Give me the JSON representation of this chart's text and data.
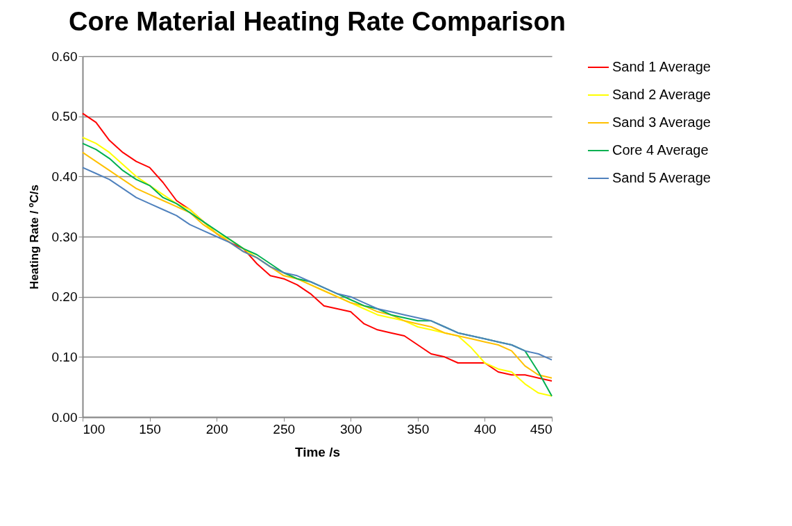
{
  "chart_data": {
    "type": "line",
    "title": "Core Material Heating Rate Comparison",
    "xlabel": "Time /s",
    "ylabel": "Heating Rate / ºC/s",
    "x": [
      100,
      110,
      120,
      130,
      140,
      150,
      160,
      170,
      180,
      190,
      200,
      210,
      220,
      230,
      240,
      250,
      260,
      270,
      280,
      290,
      300,
      310,
      320,
      330,
      340,
      350,
      360,
      370,
      380,
      390,
      400,
      410,
      420,
      430,
      440,
      450
    ],
    "series": [
      {
        "name": "Sand 1 Average",
        "color": "#ff0000",
        "values": [
          0.505,
          0.49,
          0.46,
          0.44,
          0.425,
          0.415,
          0.39,
          0.36,
          0.345,
          0.325,
          0.305,
          0.29,
          0.28,
          0.255,
          0.235,
          0.23,
          0.22,
          0.205,
          0.185,
          0.18,
          0.175,
          0.155,
          0.145,
          0.14,
          0.135,
          0.12,
          0.105,
          0.1,
          0.09,
          0.09,
          0.09,
          0.075,
          0.07,
          0.07,
          0.065,
          0.06
        ]
      },
      {
        "name": "Sand 2 Average",
        "color": "#ffff00",
        "values": [
          0.465,
          0.455,
          0.44,
          0.42,
          0.4,
          0.385,
          0.37,
          0.355,
          0.345,
          0.325,
          0.305,
          0.295,
          0.28,
          0.265,
          0.25,
          0.24,
          0.23,
          0.22,
          0.21,
          0.2,
          0.19,
          0.18,
          0.17,
          0.165,
          0.16,
          0.15,
          0.145,
          0.14,
          0.135,
          0.115,
          0.09,
          0.08,
          0.075,
          0.055,
          0.04,
          0.035
        ]
      },
      {
        "name": "Sand 3 Average",
        "color": "#ffc000",
        "values": [
          0.44,
          0.425,
          0.41,
          0.395,
          0.38,
          0.37,
          0.36,
          0.35,
          0.34,
          0.32,
          0.305,
          0.29,
          0.275,
          0.265,
          0.25,
          0.235,
          0.23,
          0.22,
          0.21,
          0.2,
          0.19,
          0.185,
          0.175,
          0.17,
          0.16,
          0.155,
          0.15,
          0.14,
          0.135,
          0.13,
          0.125,
          0.12,
          0.11,
          0.085,
          0.07,
          0.065
        ]
      },
      {
        "name": "Core 4 Average",
        "color": "#00b050",
        "values": [
          0.455,
          0.445,
          0.43,
          0.41,
          0.395,
          0.385,
          0.365,
          0.355,
          0.34,
          0.325,
          0.31,
          0.295,
          0.28,
          0.27,
          0.255,
          0.24,
          0.23,
          0.225,
          0.215,
          0.205,
          0.195,
          0.185,
          0.18,
          0.17,
          0.165,
          0.16,
          0.16,
          0.15,
          0.14,
          0.135,
          0.13,
          0.125,
          0.12,
          0.11,
          0.075,
          0.035
        ]
      },
      {
        "name": "Sand 5 Average",
        "color": "#4f81bd",
        "values": [
          0.415,
          0.405,
          0.395,
          0.38,
          0.365,
          0.355,
          0.345,
          0.335,
          0.32,
          0.31,
          0.3,
          0.29,
          0.275,
          0.265,
          0.25,
          0.24,
          0.235,
          0.225,
          0.215,
          0.205,
          0.2,
          0.19,
          0.18,
          0.175,
          0.17,
          0.165,
          0.16,
          0.15,
          0.14,
          0.135,
          0.13,
          0.125,
          0.12,
          0.11,
          0.105,
          0.095
        ]
      }
    ],
    "xlim": [
      100,
      450
    ],
    "xticks": [
      100,
      150,
      200,
      250,
      300,
      350,
      400,
      450
    ],
    "ylim": [
      0,
      0.6
    ],
    "yticks": [
      {
        "value": 0,
        "label": "0.00"
      },
      {
        "value": 0.1,
        "label": "0.10"
      },
      {
        "value": 0.2,
        "label": "0.20"
      },
      {
        "value": 0.3,
        "label": "0.30"
      },
      {
        "value": 0.4,
        "label": "0.40"
      },
      {
        "value": 0.5,
        "label": "0.50"
      },
      {
        "value": 0.6,
        "label": "0.60"
      }
    ],
    "grid": "y",
    "legend": "right",
    "marker": "none",
    "line_style": "solid"
  }
}
